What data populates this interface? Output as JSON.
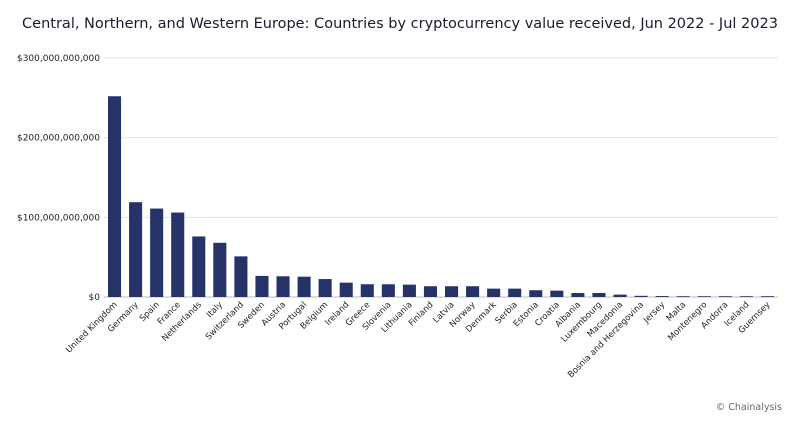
{
  "chart_data": {
    "type": "bar",
    "title": "Central, Northern, and Western Europe: Countries by cryptocurrency value received, Jun 2022 - Jul 2023",
    "xlabel": "",
    "ylabel": "",
    "ylim": [
      0,
      300000000000
    ],
    "yticks": [
      {
        "value": 0,
        "label": "$0"
      },
      {
        "value": 100000000000,
        "label": "$100,000,000,000"
      },
      {
        "value": 200000000000,
        "label": "$200,000,000,000"
      },
      {
        "value": 300000000000,
        "label": "$300,000,000,000"
      }
    ],
    "grid": true,
    "bar_color": "#253368",
    "categories": [
      "United Kingdom",
      "Germany",
      "Spain",
      "France",
      "Netherlands",
      "Italy",
      "Switzerland",
      "Sweden",
      "Austria",
      "Portugal",
      "Belgium",
      "Ireland",
      "Greece",
      "Slovenia",
      "Lithuania",
      "Finland",
      "Latvia",
      "Norway",
      "Denmark",
      "Serbia",
      "Estonia",
      "Croatia",
      "Albania",
      "Luxembourg",
      "Macedonia",
      "Bosnia and Herzegovina",
      "Jersey",
      "Malta",
      "Montenegro",
      "Andorra",
      "Iceland",
      "Guernsey"
    ],
    "values": [
      252000000000,
      119000000000,
      111000000000,
      106000000000,
      76000000000,
      68000000000,
      51000000000,
      26500000000,
      26000000000,
      25500000000,
      22500000000,
      18000000000,
      16000000000,
      16000000000,
      15500000000,
      13500000000,
      13500000000,
      13500000000,
      10500000000,
      10500000000,
      8500000000,
      8000000000,
      5000000000,
      5000000000,
      3000000000,
      1500000000,
      1200000000,
      1000000000,
      1000000000,
      500000000,
      300000000,
      300000000
    ]
  },
  "credit": "© Chainalysis"
}
